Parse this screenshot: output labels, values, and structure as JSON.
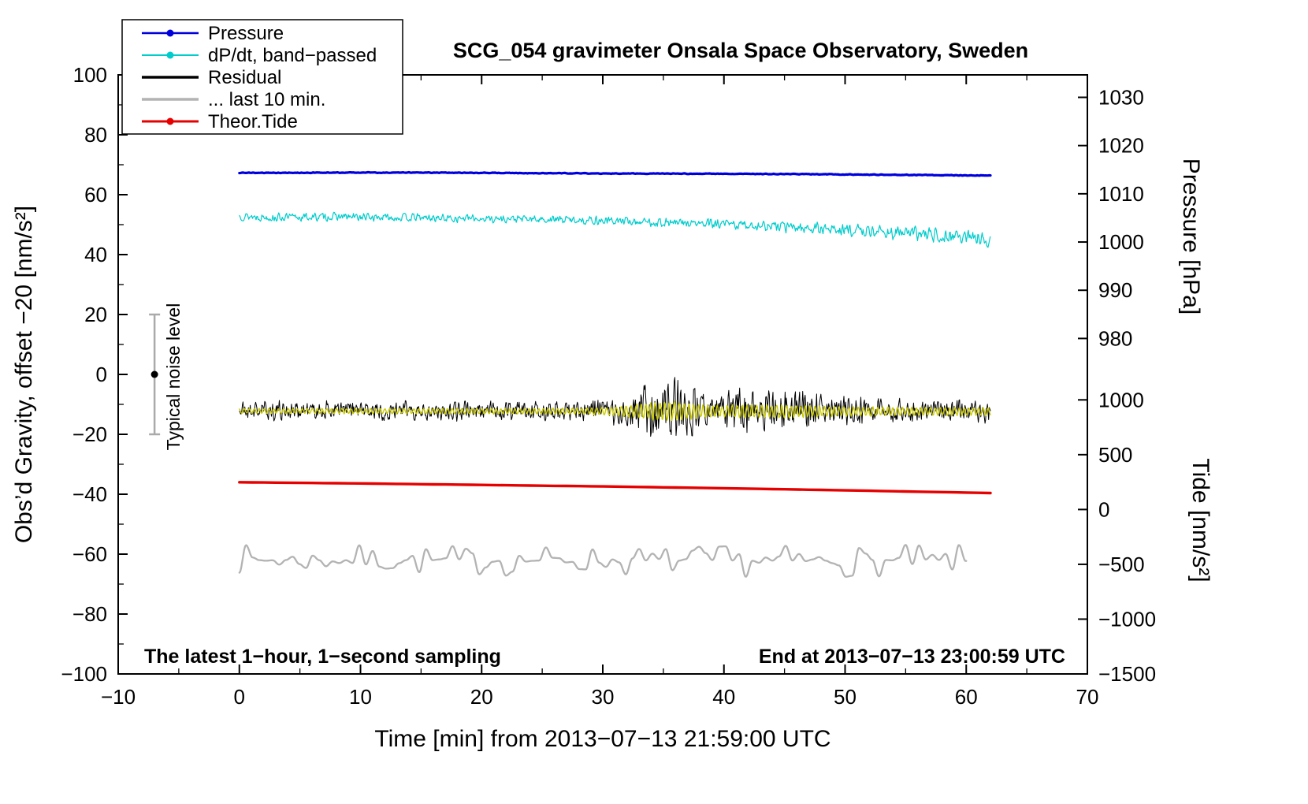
{
  "chart_data": {
    "type": "line",
    "title": "SCG_054 gravimeter Onsala Space Observatory, Sweden",
    "xlabel": "Time [min] from 2013−07−13 21:59:00 UTC",
    "ylabel_left": "Obs’d Gravity, offset −20 [nm/s²]",
    "ylabel_pressure": "Pressure [hPa]",
    "ylabel_tide": "Tide [nm/s²]",
    "xlim": [
      -10,
      70
    ],
    "ylim": [
      -100,
      100
    ],
    "x_ticks": [
      -10,
      0,
      10,
      20,
      30,
      40,
      50,
      60,
      70
    ],
    "x_tick_labels": [
      "−10",
      "0",
      "10",
      "20",
      "30",
      "40",
      "50",
      "60",
      "70"
    ],
    "y_ticks": [
      -100,
      -80,
      -60,
      -40,
      -20,
      0,
      20,
      40,
      60,
      80,
      100
    ],
    "y_tick_labels": [
      "−100",
      "−80",
      "−60",
      "−40",
      "−20",
      "0",
      "20",
      "40",
      "60",
      "80",
      "100"
    ],
    "pressure_ticks": [
      {
        "label": "1030",
        "pos": 92.5
      },
      {
        "label": "1020",
        "pos": 76.4
      },
      {
        "label": "1010",
        "pos": 60.3
      },
      {
        "label": "1000",
        "pos": 44.2
      },
      {
        "label": "990",
        "pos": 28.1
      },
      {
        "label": "980",
        "pos": 12.0
      }
    ],
    "tide_ticks": [
      {
        "label": "1000",
        "pos": -8.5
      },
      {
        "label": "500",
        "pos": -26.8
      },
      {
        "label": "0",
        "pos": -45.1
      },
      {
        "label": "−500",
        "pos": -63.4
      },
      {
        "label": "−1000",
        "pos": -81.7
      },
      {
        "label": "−1500",
        "pos": -100
      }
    ],
    "annotations": {
      "noise_label": "Typical noise level",
      "noise_bar": {
        "x": -7,
        "center": 0,
        "half": 20
      },
      "bottom_left": "The latest 1−hour, 1−second sampling",
      "bottom_right": "End at 2013−07−13 23:00:59 UTC"
    },
    "legend": [
      {
        "label": "Pressure",
        "color": "#0000dd",
        "width": 2.5,
        "dot": true
      },
      {
        "label": "dP/dt, band−passed",
        "color": "#00cccc",
        "width": 2,
        "dot": true
      },
      {
        "label": "Residual",
        "color": "#000000",
        "width": 3.5,
        "dot": false
      },
      {
        "label": "... last 10 min.",
        "color": "#b3b3b3",
        "width": 3.5,
        "dot": false
      },
      {
        "label": "Theor.Tide",
        "color": "#e60000",
        "width": 3,
        "dot": true
      }
    ],
    "series": [
      {
        "name": "theor-tide",
        "legend": "Theor.Tide",
        "color": "#e60000",
        "width": 3.4,
        "mode": "plain",
        "x_range": [
          0,
          62
        ],
        "step": 1,
        "seed": 3,
        "anchors": [
          [
            0,
            -36.0
          ],
          [
            10,
            -36.4
          ],
          [
            20,
            -36.9
          ],
          [
            30,
            -37.4
          ],
          [
            40,
            -38.0
          ],
          [
            50,
            -38.7
          ],
          [
            62,
            -39.6
          ]
        ]
      },
      {
        "name": "last-10-min",
        "legend": "... last 10 min.",
        "color": "#b3b3b3",
        "width": 2.3,
        "mode": "smooth",
        "x_range": [
          0,
          60
        ],
        "step": 0.08,
        "knot": 0.55,
        "amp": 5.5,
        "seed": 7,
        "anchors": [
          [
            0,
            -62.0
          ],
          [
            60,
            -62.3
          ]
        ]
      },
      {
        "name": "dpdt-band-passed",
        "legend": "dP/dt, band−passed",
        "color": "#00cccc",
        "width": 1.2,
        "mode": "noise",
        "x_range": [
          0,
          62
        ],
        "step": 0.06,
        "seed": 13,
        "anchors": [
          [
            0,
            52.9
          ],
          [
            3,
            52.4
          ],
          [
            8,
            52.6
          ],
          [
            15,
            52.3
          ],
          [
            22,
            51.9
          ],
          [
            28,
            51.6
          ],
          [
            33,
            51.0
          ],
          [
            38,
            50.3
          ],
          [
            43,
            49.7
          ],
          [
            48,
            48.6
          ],
          [
            52,
            47.9
          ],
          [
            56,
            46.9
          ],
          [
            59,
            46.3
          ],
          [
            62,
            45.0
          ]
        ],
        "envelope": [
          [
            0,
            1.5
          ],
          [
            20,
            1.4
          ],
          [
            35,
            1.6
          ],
          [
            45,
            2.0
          ],
          [
            55,
            2.4
          ],
          [
            62,
            2.6
          ]
        ]
      },
      {
        "name": "pressure",
        "legend": "Pressure",
        "color": "#0000dd",
        "width": 3.2,
        "mode": "noise",
        "x_range": [
          0,
          62
        ],
        "step": 0.1,
        "seed": 35,
        "noise": 0.12,
        "anchors": [
          [
            0,
            67.3
          ],
          [
            15,
            67.4
          ],
          [
            30,
            67.1
          ],
          [
            45,
            66.9
          ],
          [
            62,
            66.4
          ]
        ]
      },
      {
        "name": "residual",
        "legend": "Residual",
        "color": "#000000",
        "width": 1,
        "mode": "noise",
        "x_range": [
          0,
          62
        ],
        "step": 0.05,
        "seed": 21,
        "anchors": [
          [
            0,
            -12.0
          ],
          [
            30,
            -12.1
          ],
          [
            62,
            -12.3
          ]
        ],
        "envelope": [
          [
            0,
            3.4
          ],
          [
            10,
            3.4
          ],
          [
            20,
            3.6
          ],
          [
            27,
            3.8
          ],
          [
            30,
            4.2
          ],
          [
            32,
            6.0
          ],
          [
            33.5,
            10.0
          ],
          [
            34.8,
            15.5
          ],
          [
            36,
            12.0
          ],
          [
            37.5,
            8.0
          ],
          [
            38.8,
            4.5
          ],
          [
            40,
            7.0
          ],
          [
            41.5,
            9.5
          ],
          [
            42.8,
            5.5
          ],
          [
            44,
            8.0
          ],
          [
            45.5,
            8.5
          ],
          [
            47,
            6.5
          ],
          [
            48.5,
            5.0
          ],
          [
            50,
            5.5
          ],
          [
            52,
            4.5
          ],
          [
            55,
            4.2
          ],
          [
            58,
            4.0
          ],
          [
            62,
            4.2
          ]
        ]
      },
      {
        "name": "residual-band-passed",
        "legend": "",
        "color": "#cccc00",
        "width": 1.4,
        "mode": "osc",
        "x_range": [
          0,
          62
        ],
        "step": 0.05,
        "period": 0.4,
        "seed": 29,
        "anchors": [
          [
            0,
            -12.2
          ],
          [
            62,
            -12.4
          ]
        ],
        "envelope": [
          [
            0,
            0.9
          ],
          [
            20,
            1.0
          ],
          [
            28,
            1.1
          ],
          [
            31,
            1.6
          ],
          [
            33,
            2.6
          ],
          [
            35,
            3.6
          ],
          [
            36.5,
            3.2
          ],
          [
            38,
            2.4
          ],
          [
            40,
            2.0
          ],
          [
            41.5,
            2.6
          ],
          [
            43,
            2.2
          ],
          [
            45,
            2.4
          ],
          [
            47,
            2.0
          ],
          [
            50,
            1.7
          ],
          [
            54,
            1.5
          ],
          [
            62,
            1.4
          ]
        ]
      }
    ]
  }
}
